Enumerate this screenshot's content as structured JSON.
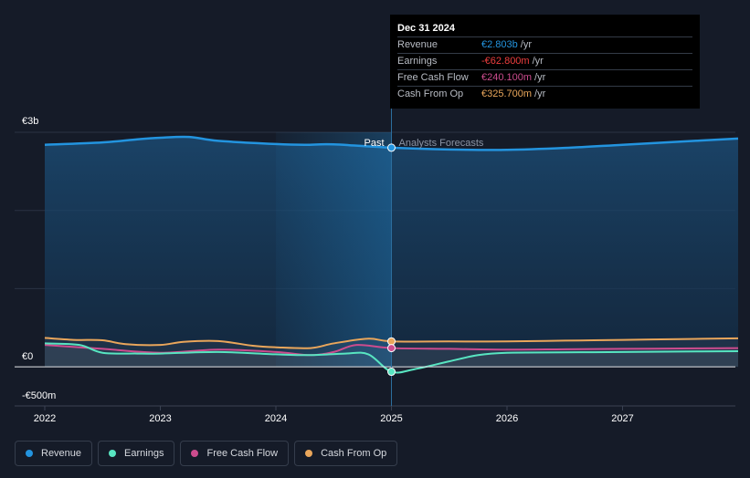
{
  "chart_data": {
    "type": "line",
    "currency_unit": "€",
    "y_labels": [
      "€3b",
      "€0",
      "-€500m"
    ],
    "ylim": [
      -500,
      3000
    ],
    "x_ticks": [
      "2022",
      "2023",
      "2024",
      "2025",
      "2026",
      "2027"
    ],
    "x_tick_values": [
      2022,
      2023,
      2024,
      2025,
      2026,
      2027
    ],
    "xlim": [
      2021.75,
      2028.0
    ],
    "divider_x": 2025,
    "highlight_start": 2024,
    "past_label": "Past",
    "forecast_label": "Analysts Forecasts",
    "series": [
      {
        "name": "Revenue",
        "key": "revenue",
        "color": "#2394df",
        "x": [
          2022,
          2022.5,
          2022.8,
          2023,
          2023.25,
          2023.5,
          2024,
          2024.25,
          2024.5,
          2025,
          2025.5,
          2026,
          2026.5,
          2027,
          2027.5,
          2028
        ],
        "values": [
          2840,
          2870,
          2910,
          2930,
          2940,
          2890,
          2850,
          2840,
          2845,
          2803,
          2780,
          2775,
          2800,
          2840,
          2880,
          2920
        ]
      },
      {
        "name": "Earnings",
        "key": "earnings",
        "color": "#58e5c1",
        "x": [
          2022,
          2022.3,
          2022.5,
          2022.8,
          2023,
          2023.5,
          2024,
          2024.3,
          2024.6,
          2024.8,
          2025,
          2025.2,
          2025.5,
          2025.75,
          2026,
          2026.5,
          2027,
          2027.5,
          2028
        ],
        "values": [
          300,
          280,
          180,
          170,
          170,
          190,
          160,
          150,
          170,
          160,
          -62.8,
          -30,
          70,
          150,
          180,
          185,
          190,
          195,
          200
        ]
      },
      {
        "name": "Free Cash Flow",
        "key": "fcf",
        "color": "#cc4c8e",
        "x": [
          2022,
          2022.5,
          2023,
          2023.5,
          2024,
          2024.3,
          2024.5,
          2024.7,
          2025,
          2025.5,
          2026,
          2026.5,
          2027,
          2027.5,
          2028
        ],
        "values": [
          280,
          230,
          180,
          220,
          190,
          150,
          190,
          280,
          240.1,
          230,
          220,
          225,
          230,
          235,
          240
        ]
      },
      {
        "name": "Cash From Op",
        "key": "cfo",
        "color": "#e9a65b",
        "x": [
          2022,
          2022.25,
          2022.5,
          2022.7,
          2023,
          2023.2,
          2023.5,
          2023.8,
          2024,
          2024.3,
          2024.5,
          2024.8,
          2025,
          2025.5,
          2026,
          2026.5,
          2027,
          2027.5,
          2028
        ],
        "values": [
          370,
          345,
          340,
          290,
          280,
          320,
          330,
          270,
          250,
          240,
          300,
          360,
          325.7,
          325,
          325,
          335,
          345,
          355,
          365
        ]
      }
    ]
  },
  "tooltip": {
    "date": "Dec 31 2024",
    "rows": [
      {
        "label": "Revenue",
        "value": "€2.803b",
        "unit": "/yr",
        "color": "#2394df"
      },
      {
        "label": "Earnings",
        "value": "-€62.800m",
        "unit": "/yr",
        "color": "#ef3e3e"
      },
      {
        "label": "Free Cash Flow",
        "value": "€240.100m",
        "unit": "/yr",
        "color": "#cc4c8e"
      },
      {
        "label": "Cash From Op",
        "value": "€325.700m",
        "unit": "/yr",
        "color": "#e9a65b"
      }
    ]
  },
  "legend": [
    {
      "label": "Revenue",
      "color": "#2394df"
    },
    {
      "label": "Earnings",
      "color": "#58e5c1"
    },
    {
      "label": "Free Cash Flow",
      "color": "#cc4c8e"
    },
    {
      "label": "Cash From Op",
      "color": "#e9a65b"
    }
  ]
}
